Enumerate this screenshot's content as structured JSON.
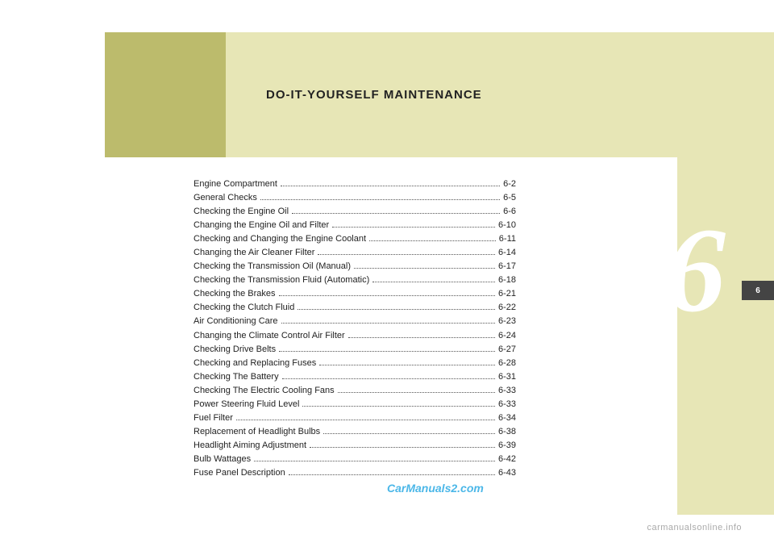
{
  "colors": {
    "band_light": "#e7e6b6",
    "band_dark": "#bcbb6c",
    "tab_bg": "#444444",
    "tab_text": "#ffffff",
    "big_number": "#ffffff",
    "text": "#222222",
    "watermark": "#4bb7e8",
    "footer": "#aaaaaa"
  },
  "header": {
    "title": "DO-IT-YOURSELF  MAINTENANCE"
  },
  "chapter_number": "6",
  "tab_label": "6",
  "toc": [
    {
      "label": "Engine Compartment",
      "page": "6-2"
    },
    {
      "label": "General  Checks",
      "page": "6-5"
    },
    {
      "label": "Checking the Engine Oil",
      "page": "6-6"
    },
    {
      "label": "Changing the Engine Oil and Filter",
      "page": "6-10"
    },
    {
      "label": "Checking and Changing the Engine Coolant",
      "page": "6-11"
    },
    {
      "label": "Changing the Air Cleaner Filter",
      "page": "6-14"
    },
    {
      "label": "Checking the Transmission Oil (Manual)",
      "page": "6-17"
    },
    {
      "label": "Checking the Transmission Fluid (Automatic)",
      "page": "6-18"
    },
    {
      "label": "Checking  the  Brakes",
      "page": "6-21"
    },
    {
      "label": "Checking the Clutch Fluid",
      "page": "6-22"
    },
    {
      "label": "Air Conditioning Care",
      "page": "6-23"
    },
    {
      "label": "Changing the Climate Control Air Filter",
      "page": "6-24"
    },
    {
      "label": "Checking  Drive  Belts",
      "page": "6-27"
    },
    {
      "label": "Checking and Replacing Fuses",
      "page": "6-28"
    },
    {
      "label": "Checking  The  Battery",
      "page": "6-31"
    },
    {
      "label": "Checking The Electric Cooling Fans",
      "page": "6-33"
    },
    {
      "label": "Power Steering Fluid Level",
      "page": "6-33"
    },
    {
      "label": "Fuel Filter",
      "page": "6-34"
    },
    {
      "label": "Replacement of Headlight Bulbs",
      "page": "6-38"
    },
    {
      "label": "Headlight Aiming Adjustment",
      "page": "6-39"
    },
    {
      "label": "Bulb Wattages",
      "page": "6-42"
    },
    {
      "label": "Fuse Panel Description",
      "page": "6-43"
    }
  ],
  "watermark": "CarManuals2.com",
  "footer": "carmanualsonline.info"
}
